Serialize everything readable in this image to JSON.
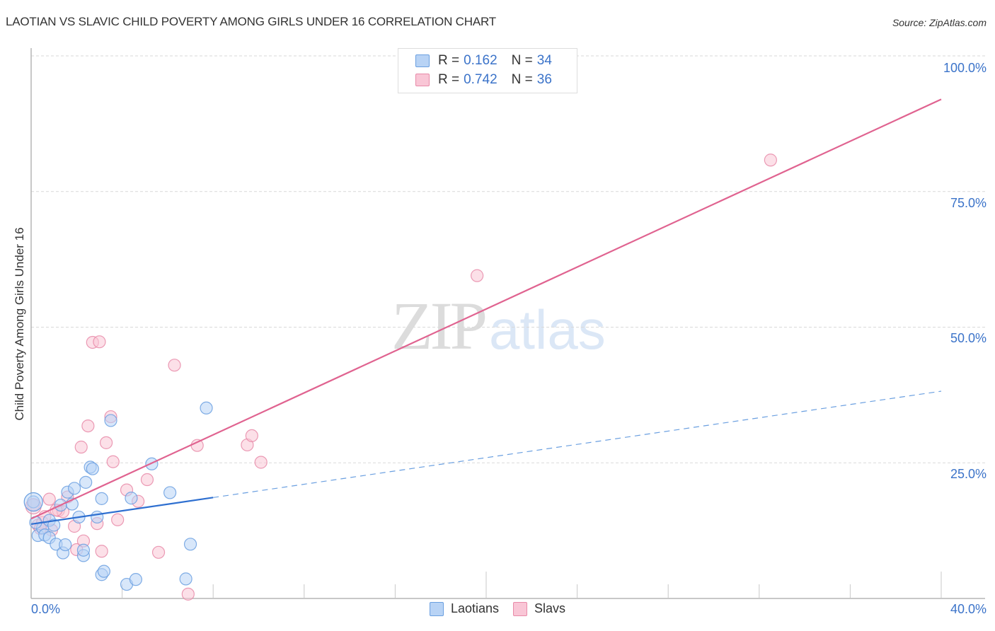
{
  "header": {
    "title": "LAOTIAN VS SLAVIC CHILD POVERTY AMONG GIRLS UNDER 16 CORRELATION CHART",
    "source": "Source: ZipAtlas.com"
  },
  "legend_top": {
    "rows": [
      {
        "r_label": "R =",
        "r_value": "0.162",
        "n_label": "N =",
        "n_value": "34",
        "color": "#b8d3f5",
        "border": "#6a9fe0"
      },
      {
        "r_label": "R =",
        "r_value": "0.742",
        "n_label": "N =",
        "n_value": "36",
        "color": "#f9c6d6",
        "border": "#e88aa8"
      }
    ]
  },
  "legend_bottom": {
    "items": [
      {
        "label": "Laotians",
        "color": "#b8d3f5",
        "border": "#6a9fe0"
      },
      {
        "label": "Slavs",
        "color": "#f9c6d6",
        "border": "#e88aa8"
      }
    ]
  },
  "axes": {
    "ylabel": "Child Poverty Among Girls Under 16",
    "y_ticks": [
      "100.0%",
      "75.0%",
      "50.0%",
      "25.0%"
    ],
    "x_ticks": [
      "0.0%",
      "40.0%"
    ]
  },
  "watermark": {
    "zip": "ZIP",
    "atlas": "atlas"
  },
  "chart_data": {
    "type": "scatter",
    "title": "LAOTIAN VS SLAVIC CHILD POVERTY AMONG GIRLS UNDER 16 CORRELATION CHART",
    "xlabel": "",
    "ylabel": "Child Poverty Among Girls Under 16",
    "xlim": [
      0,
      40
    ],
    "ylim": [
      0,
      100
    ],
    "x_tick_labels": [
      "0.0%",
      "40.0%"
    ],
    "y_tick_labels": [
      "25.0%",
      "50.0%",
      "75.0%",
      "100.0%"
    ],
    "grid": {
      "horizontal_dashed": true
    },
    "legend_position": "top-center and bottom-center",
    "series": [
      {
        "name": "Laotians",
        "color": "#6a9fe0",
        "R": 0.162,
        "N": 34,
        "trend": {
          "x0": 0,
          "y0": 13.7,
          "x1": 40,
          "y1": 38.2,
          "solid_until_x": 8.0
        },
        "points": [
          [
            0.1,
            17.8
          ],
          [
            0.3,
            11.6
          ],
          [
            0.5,
            13.0
          ],
          [
            0.6,
            11.7
          ],
          [
            0.8,
            14.4
          ],
          [
            0.8,
            11.2
          ],
          [
            1.1,
            10.0
          ],
          [
            1.3,
            17.2
          ],
          [
            1.4,
            8.4
          ],
          [
            1.5,
            9.9
          ],
          [
            1.6,
            19.6
          ],
          [
            1.8,
            17.4
          ],
          [
            1.9,
            20.3
          ],
          [
            2.1,
            15.0
          ],
          [
            2.3,
            7.9
          ],
          [
            2.3,
            8.9
          ],
          [
            2.4,
            21.4
          ],
          [
            2.6,
            24.2
          ],
          [
            2.7,
            23.9
          ],
          [
            2.9,
            15.0
          ],
          [
            3.1,
            4.4
          ],
          [
            3.1,
            18.4
          ],
          [
            3.2,
            5.0
          ],
          [
            3.5,
            32.8
          ],
          [
            4.2,
            2.6
          ],
          [
            4.4,
            18.5
          ],
          [
            4.6,
            3.5
          ],
          [
            5.3,
            24.8
          ],
          [
            6.1,
            19.5
          ],
          [
            6.8,
            3.6
          ],
          [
            7.0,
            10.0
          ],
          [
            7.7,
            35.1
          ],
          [
            0.2,
            14.0
          ],
          [
            1.0,
            13.5
          ]
        ]
      },
      {
        "name": "Slavs",
        "color": "#e88aa8",
        "R": 0.742,
        "N": 36,
        "trend": {
          "x0": 0,
          "y0": 14.7,
          "x1": 40,
          "y1": 92.0
        },
        "points": [
          [
            0.1,
            17.2
          ],
          [
            0.3,
            13.5
          ],
          [
            0.5,
            14.0
          ],
          [
            0.8,
            18.3
          ],
          [
            0.9,
            12.6
          ],
          [
            1.2,
            16.2
          ],
          [
            1.4,
            16.0
          ],
          [
            1.6,
            18.7
          ],
          [
            1.9,
            13.3
          ],
          [
            2.0,
            9.0
          ],
          [
            2.2,
            27.9
          ],
          [
            2.3,
            10.6
          ],
          [
            2.5,
            31.8
          ],
          [
            2.9,
            13.8
          ],
          [
            2.7,
            47.2
          ],
          [
            3.0,
            47.3
          ],
          [
            3.1,
            8.7
          ],
          [
            3.3,
            28.7
          ],
          [
            3.5,
            33.5
          ],
          [
            3.6,
            25.2
          ],
          [
            3.8,
            14.5
          ],
          [
            4.2,
            20.0
          ],
          [
            4.7,
            17.9
          ],
          [
            5.1,
            21.9
          ],
          [
            5.6,
            8.5
          ],
          [
            6.3,
            43.0
          ],
          [
            6.9,
            0.8
          ],
          [
            7.3,
            28.2
          ],
          [
            9.5,
            28.3
          ],
          [
            9.7,
            30.0
          ],
          [
            10.1,
            25.1
          ],
          [
            19.6,
            59.5
          ],
          [
            32.5,
            80.8
          ],
          [
            1.1,
            16.3
          ],
          [
            0.6,
            15.1
          ],
          [
            0.4,
            12.9
          ]
        ]
      }
    ]
  }
}
